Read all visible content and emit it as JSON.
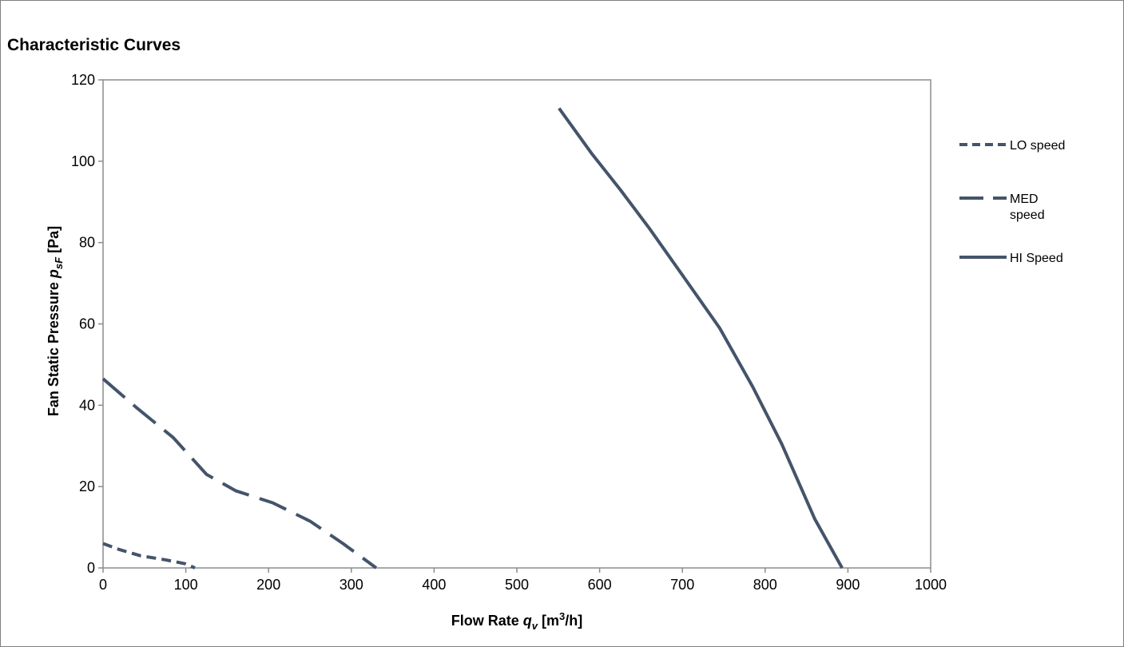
{
  "chart_data": {
    "type": "line",
    "title": "Characteristic Curves",
    "xlabel": {
      "main": "Flow Rate ",
      "symbol": "q",
      "subscript": "v",
      "unit_open": " [m",
      "unit_sup": "3",
      "unit_close": "/h]"
    },
    "ylabel": {
      "main": "Fan Static Pressure ",
      "symbol": "p",
      "subscript": "sF",
      "unit": " [Pa]"
    },
    "xlim": [
      0,
      1000
    ],
    "ylim": [
      0,
      120
    ],
    "x_ticks": [
      "0",
      "100",
      "200",
      "300",
      "400",
      "500",
      "600",
      "700",
      "800",
      "900",
      "1000"
    ],
    "y_ticks": [
      "0",
      "20",
      "40",
      "60",
      "80",
      "100",
      "120"
    ],
    "grid": false,
    "legend_position": "right",
    "line_color": "#44546a",
    "series": [
      {
        "name": "LO speed",
        "legend_lines": [
          "LO speed"
        ],
        "style": "short-dash",
        "points": [
          [
            0,
            6
          ],
          [
            20,
            4.5
          ],
          [
            45,
            3
          ],
          [
            75,
            2
          ],
          [
            100,
            1
          ],
          [
            111,
            0
          ]
        ]
      },
      {
        "name": "MED speed",
        "legend_lines": [
          "MED",
          "speed"
        ],
        "style": "long-dash",
        "points": [
          [
            0,
            46.5
          ],
          [
            40,
            39.5
          ],
          [
            85,
            32
          ],
          [
            125,
            23
          ],
          [
            160,
            19
          ],
          [
            205,
            16
          ],
          [
            250,
            11.5
          ],
          [
            290,
            6
          ],
          [
            330,
            0
          ]
        ]
      },
      {
        "name": "HI Speed",
        "legend_lines": [
          "HI Speed"
        ],
        "style": "solid",
        "points": [
          [
            551,
            113
          ],
          [
            590,
            102
          ],
          [
            625,
            93
          ],
          [
            660,
            83.5
          ],
          [
            700,
            72
          ],
          [
            745,
            59
          ],
          [
            785,
            44.5
          ],
          [
            820,
            30.5
          ],
          [
            860,
            12
          ],
          [
            893,
            0
          ]
        ]
      }
    ]
  }
}
